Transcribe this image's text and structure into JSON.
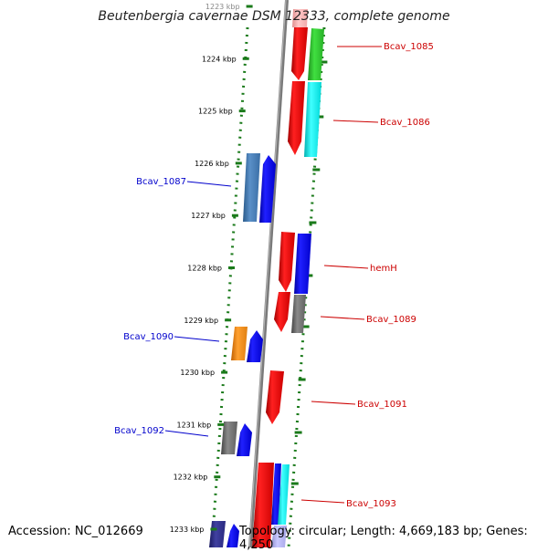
{
  "figure": {
    "title": "Beutenbergia cavernae DSM 12333, complete genome",
    "accession": "Accession: NC_012669",
    "topology": "Topology: circular; Length: 4,669,183 bp; Genes: 4,250"
  },
  "scale": {
    "unit": "kbp",
    "ticks": [
      "1223 kbp",
      "1224 kbp",
      "1225 kbp",
      "1226 kbp",
      "1227 kbp",
      "1228 kbp",
      "1229 kbp",
      "1230 kbp",
      "1231 kbp",
      "1232 kbp",
      "1233 kbp"
    ]
  },
  "genes": [
    {
      "label": "Bcav_1085",
      "strand": "reverse",
      "color": "#cc0000"
    },
    {
      "label": "Bcav_1086",
      "strand": "reverse",
      "color": "#cc0000"
    },
    {
      "label": "Bcav_1087",
      "strand": "forward",
      "color": "#0000cc"
    },
    {
      "label": "hemH",
      "strand": "reverse",
      "color": "#cc0000"
    },
    {
      "label": "Bcav_1089",
      "strand": "reverse",
      "color": "#cc0000"
    },
    {
      "label": "Bcav_1090",
      "strand": "forward",
      "color": "#0000cc"
    },
    {
      "label": "Bcav_1091",
      "strand": "reverse",
      "color": "#cc0000"
    },
    {
      "label": "Bcav_1092",
      "strand": "forward",
      "color": "#0000cc"
    },
    {
      "label": "Bcav_1093",
      "strand": "reverse",
      "color": "#cc0000"
    }
  ],
  "colors": {
    "forward_strand": "#0000ff",
    "reverse_strand": "#ff0000",
    "gc_track": "#1a7a1a",
    "backbone": "#888888"
  }
}
